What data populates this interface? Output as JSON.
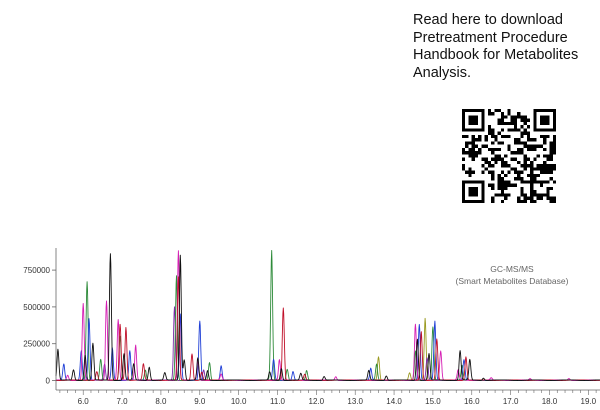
{
  "promo": {
    "lines": [
      "Read here to download",
      "Pretreatment Procedure",
      "Handbook for Metabolites",
      "Analysis."
    ]
  },
  "qr_code": {
    "label": "QR code",
    "color": "#000000"
  },
  "chart_data": {
    "type": "line",
    "title": "GC-MS/MS",
    "subtitle": "(Smart Metabolites Database)",
    "xlabel": "",
    "ylabel": "",
    "xlim": [
      5.3,
      19.3
    ],
    "ylim": [
      -10000,
      900000
    ],
    "xticks": [
      "6.0",
      "7.0",
      "8.0",
      "9.0",
      "10.0",
      "11.0",
      "12.0",
      "13.0",
      "14.0",
      "15.0",
      "16.0",
      "17.0",
      "18.0",
      "19.0"
    ],
    "yticks": [
      "0",
      "250000",
      "500000",
      "750000"
    ],
    "grid": false,
    "legend": "none",
    "colors": {
      "black": "#111111",
      "red": "#c0102a",
      "green": "#2e8b3a",
      "blue": "#1f3fd6",
      "magenta": "#d61fb4",
      "purple": "#7a2aa8",
      "olive": "#9a9a20",
      "axis": "#666666"
    },
    "series": [
      {
        "color": "black",
        "peaks": [
          [
            5.35,
            210000
          ],
          [
            5.75,
            70000
          ],
          [
            6.05,
            170000
          ],
          [
            6.25,
            250000
          ],
          [
            6.7,
            860000
          ],
          [
            7.05,
            180000
          ],
          [
            7.3,
            110000
          ],
          [
            7.7,
            90000
          ],
          [
            8.1,
            50000
          ],
          [
            8.5,
            850000
          ],
          [
            8.6,
            140000
          ],
          [
            8.95,
            150000
          ],
          [
            9.2,
            65000
          ],
          [
            10.8,
            55000
          ],
          [
            11.1,
            80000
          ],
          [
            11.6,
            45000
          ],
          [
            12.2,
            25000
          ],
          [
            13.35,
            65000
          ],
          [
            13.8,
            30000
          ],
          [
            14.6,
            280000
          ],
          [
            14.9,
            180000
          ],
          [
            15.7,
            200000
          ],
          [
            15.95,
            140000
          ],
          [
            16.3,
            15000
          ]
        ]
      },
      {
        "color": "red",
        "peaks": [
          [
            6.35,
            60000
          ],
          [
            6.95,
            380000
          ],
          [
            7.1,
            360000
          ],
          [
            7.55,
            110000
          ],
          [
            8.45,
            700000
          ],
          [
            8.8,
            180000
          ],
          [
            9.05,
            55000
          ],
          [
            11.15,
            490000
          ],
          [
            11.7,
            40000
          ],
          [
            14.7,
            330000
          ],
          [
            15.1,
            280000
          ],
          [
            15.85,
            160000
          ]
        ]
      },
      {
        "color": "green",
        "peaks": [
          [
            6.1,
            670000
          ],
          [
            6.45,
            140000
          ],
          [
            6.95,
            300000
          ],
          [
            7.6,
            70000
          ],
          [
            8.4,
            710000
          ],
          [
            9.25,
            120000
          ],
          [
            10.85,
            880000
          ],
          [
            11.25,
            75000
          ],
          [
            11.75,
            65000
          ],
          [
            13.55,
            110000
          ],
          [
            14.55,
            200000
          ],
          [
            15.0,
            360000
          ],
          [
            15.75,
            100000
          ]
        ]
      },
      {
        "color": "blue",
        "peaks": [
          [
            5.5,
            110000
          ],
          [
            5.95,
            200000
          ],
          [
            6.15,
            420000
          ],
          [
            6.75,
            220000
          ],
          [
            7.2,
            200000
          ],
          [
            8.5,
            450000
          ],
          [
            9.0,
            400000
          ],
          [
            9.55,
            100000
          ],
          [
            10.9,
            140000
          ],
          [
            11.4,
            60000
          ],
          [
            13.4,
            80000
          ],
          [
            14.65,
            380000
          ],
          [
            15.05,
            400000
          ],
          [
            15.8,
            140000
          ]
        ]
      },
      {
        "color": "magenta",
        "peaks": [
          [
            5.6,
            35000
          ],
          [
            6.0,
            520000
          ],
          [
            6.6,
            540000
          ],
          [
            6.9,
            410000
          ],
          [
            7.35,
            240000
          ],
          [
            8.45,
            880000
          ],
          [
            8.95,
            130000
          ],
          [
            9.55,
            40000
          ],
          [
            11.05,
            140000
          ],
          [
            12.5,
            25000
          ],
          [
            14.55,
            380000
          ],
          [
            15.2,
            200000
          ],
          [
            15.65,
            70000
          ],
          [
            16.5,
            15000
          ],
          [
            17.5,
            10000
          ],
          [
            18.5,
            12000
          ]
        ]
      },
      {
        "color": "purple",
        "peaks": [
          [
            6.55,
            110000
          ],
          [
            8.35,
            500000
          ],
          [
            9.1,
            70000
          ],
          [
            14.85,
            150000
          ]
        ]
      },
      {
        "color": "olive",
        "peaks": [
          [
            13.6,
            160000
          ],
          [
            14.4,
            50000
          ],
          [
            14.8,
            420000
          ]
        ]
      }
    ]
  }
}
